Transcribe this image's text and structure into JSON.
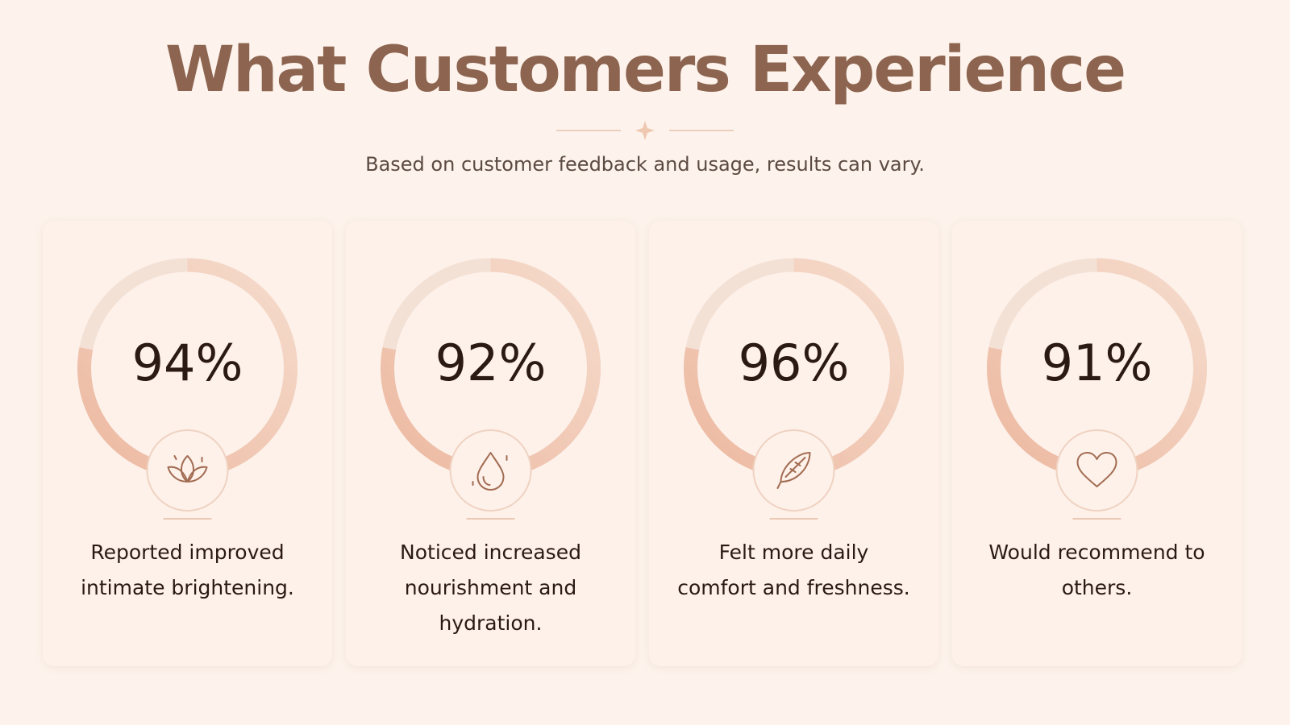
{
  "header": {
    "title": "What Customers Experience",
    "subtitle": "Based on customer feedback and usage, results can vary."
  },
  "cards": [
    {
      "value": "94%",
      "label": "Reported improved intimate brightening."
    },
    {
      "value": "92%",
      "label": "Noticed increased nourishment and hydration."
    },
    {
      "value": "96%",
      "label": "Felt more daily comfort and freshness."
    },
    {
      "value": "91%",
      "label": "Would recommend to others."
    }
  ]
}
